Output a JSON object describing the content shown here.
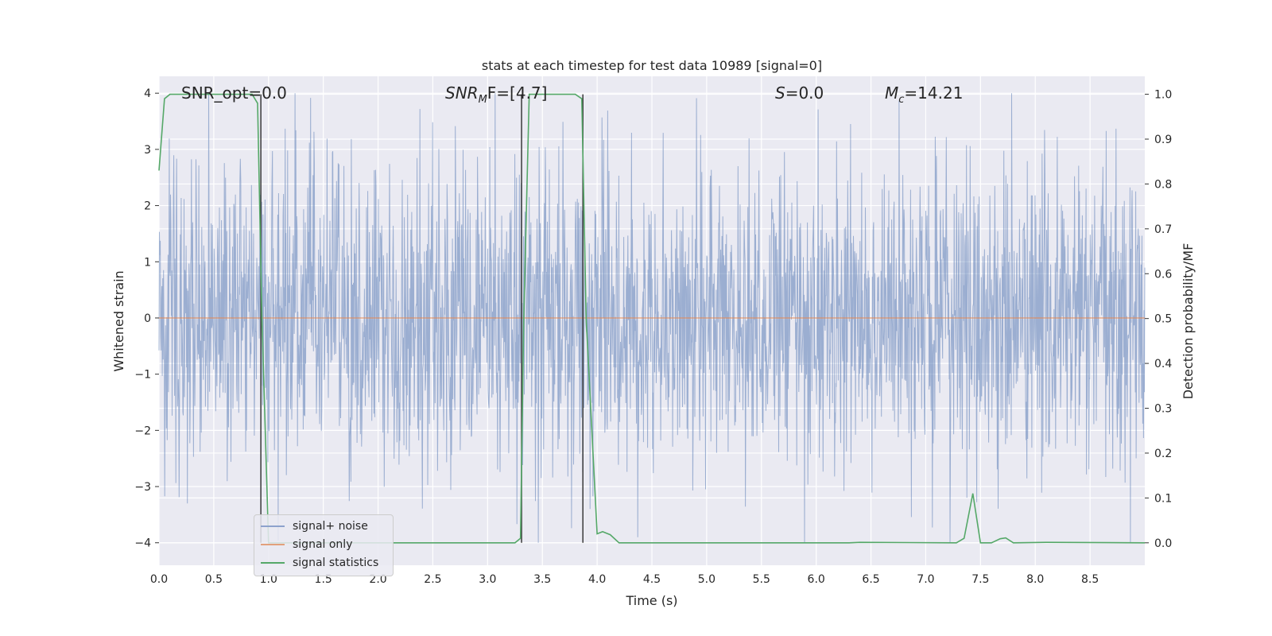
{
  "chart_data": {
    "type": "line",
    "title": "stats at each timestep for test data 10989 [signal=0]",
    "xlabel": "Time (s)",
    "ylabel": "Whitened strain",
    "ylabel_right": "Detection probability/MF",
    "xlim": [
      0,
      9.0
    ],
    "ylim": [
      -4.4,
      4.3
    ],
    "ylim_right": [
      -0.05,
      1.04
    ],
    "x_ticks": [
      "0.0",
      "0.5",
      "1.0",
      "1.5",
      "2.0",
      "2.5",
      "3.0",
      "3.5",
      "4.0",
      "4.5",
      "5.0",
      "5.5",
      "6.0",
      "6.5",
      "7.0",
      "7.5",
      "8.0",
      "8.5"
    ],
    "y_ticks": [
      "4",
      "3",
      "2",
      "1",
      "0",
      "−1",
      "−2",
      "−3",
      "−4"
    ],
    "y_ticks_right": [
      "1.0",
      "0.9",
      "0.8",
      "0.7",
      "0.6",
      "0.5",
      "0.4",
      "0.3",
      "0.2",
      "0.1",
      "0.0"
    ],
    "grid": true,
    "legend_position": "lower-left",
    "annotations": {
      "snr_opt": "SNR_opt=0.0",
      "snr_mf_main": "SNR",
      "snr_mf_sub": "M",
      "snr_mf_rest": "F=[4.7]",
      "s_main": "S",
      "s_rest": "=0.0",
      "mc_main": "M",
      "mc_sub": "c",
      "mc_rest": "=14.21"
    },
    "vertical_lines_x": [
      0.93,
      3.31,
      3.87
    ],
    "series": [
      {
        "name": "signal+ noise",
        "color": "#4c72b0",
        "description_values": "whitened strain noise, envelope roughly ±2.5 with spikes to ±4",
        "amplitude_envelope": 2.5
      },
      {
        "name": "signal only",
        "color": "#dd8452",
        "values": [
          [
            0,
            0
          ],
          [
            9.0,
            0
          ]
        ]
      },
      {
        "name": "signal statistics",
        "color": "#55a868",
        "axis": "right",
        "points": [
          [
            0.0,
            0.83
          ],
          [
            0.05,
            0.99
          ],
          [
            0.1,
            1.0
          ],
          [
            0.85,
            1.0
          ],
          [
            0.9,
            0.98
          ],
          [
            0.94,
            0.5
          ],
          [
            1.0,
            0.0
          ],
          [
            3.25,
            0.0
          ],
          [
            3.3,
            0.01
          ],
          [
            3.33,
            0.5
          ],
          [
            3.38,
            1.0
          ],
          [
            3.8,
            1.0
          ],
          [
            3.86,
            0.99
          ],
          [
            3.9,
            0.5
          ],
          [
            4.0,
            0.02
          ],
          [
            4.05,
            0.025
          ],
          [
            4.12,
            0.018
          ],
          [
            4.2,
            0.0
          ],
          [
            6.3,
            0.0
          ],
          [
            6.4,
            0.001
          ],
          [
            7.28,
            0.0
          ],
          [
            7.35,
            0.01
          ],
          [
            7.43,
            0.11
          ],
          [
            7.5,
            0.0
          ],
          [
            7.6,
            0.0
          ],
          [
            7.68,
            0.009
          ],
          [
            7.73,
            0.011
          ],
          [
            7.8,
            0.0
          ],
          [
            8.1,
            0.001
          ],
          [
            9.0,
            0.0
          ]
        ]
      }
    ]
  },
  "legend": {
    "items": [
      {
        "label": "signal+ noise",
        "color": "#4c72b0"
      },
      {
        "label": "signal only",
        "color": "#dd8452"
      },
      {
        "label": "signal statistics",
        "color": "#55a868"
      }
    ]
  }
}
